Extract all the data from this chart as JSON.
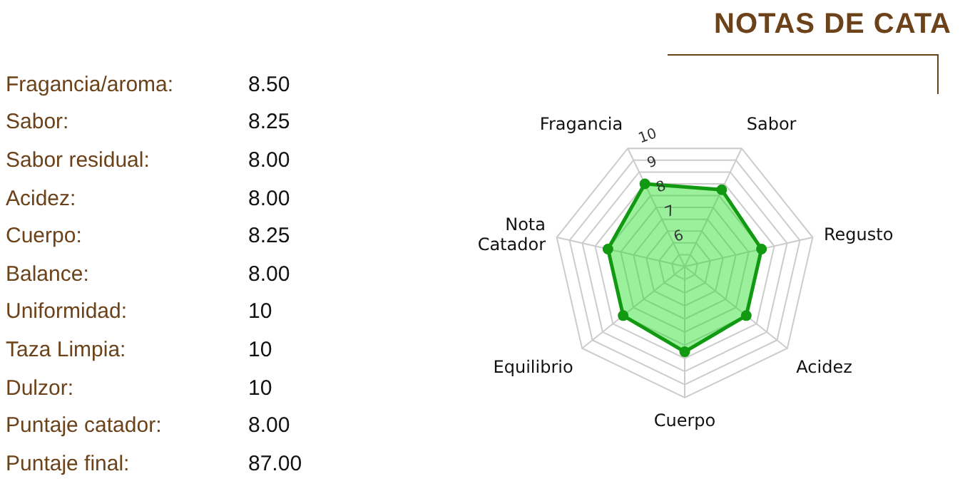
{
  "chart_data": [
    {
      "type": "other",
      "annotations": [
        "Fragancia/aroma:",
        "8.50",
        "Sabor:",
        "8.25",
        "Sabor residual:",
        "8.00",
        "Acidez:",
        "8.00",
        "Cuerpo:",
        "8.25",
        "Balance:",
        "8.00",
        "Uniformidad:",
        "10",
        "Taza Limpia:",
        "10",
        "Dulzor:",
        "10",
        "Puntaje catador:",
        "8.00",
        "Puntaje final:",
        "87.00"
      ]
    },
    {
      "type": "radar",
      "title": "NOTAS DE CATA",
      "categories": [
        "Fragancia",
        "Sabor",
        "Regusto",
        "Acidez",
        "Cuerpo",
        "Equilibrio",
        "Nota\nCatador"
      ],
      "series": [
        {
          "color": "#119911",
          "values": [
            8.5,
            8.25,
            8.0,
            8.0,
            8.25,
            8.0,
            8.0
          ]
        }
      ],
      "ylim": [
        5,
        10
      ],
      "yticks": [
        6,
        7,
        8,
        9,
        10
      ],
      "grid": true,
      "marker": "circle"
    }
  ]
}
